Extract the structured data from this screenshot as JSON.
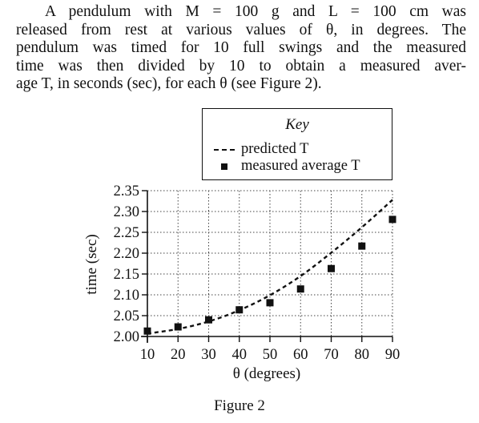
{
  "passage": {
    "lines": [
      "A pendulum with M = 100 g and L = 100 cm was",
      "released from rest at various values of θ, in degrees. The",
      "pendulum was timed for 10 full swings and the measured",
      "time was then divided by 10 to obtain a measured aver-",
      "age T, in seconds (sec), for each θ (see Figure 2)."
    ]
  },
  "key": {
    "title": "Key",
    "predicted_label": "predicted T",
    "measured_label": "measured average T"
  },
  "figure_caption": "Figure 2",
  "chart_data": {
    "type": "scatter",
    "xlabel": "θ (degrees)",
    "ylabel": "time (sec)",
    "xlim": [
      10,
      90
    ],
    "ylim": [
      2.0,
      2.35
    ],
    "x_ticks": [
      "10",
      "20",
      "30",
      "40",
      "50",
      "60",
      "70",
      "80",
      "90"
    ],
    "y_ticks": [
      "2.00",
      "2.05",
      "2.10",
      "2.15",
      "2.20",
      "2.25",
      "2.30",
      "2.35"
    ],
    "grid": true,
    "legend_position": "top",
    "series": [
      {
        "name": "predicted T",
        "style": "dashed-line",
        "x": [
          10,
          20,
          30,
          40,
          50,
          60,
          70,
          80,
          90
        ],
        "values": [
          2.007,
          2.018,
          2.036,
          2.063,
          2.099,
          2.145,
          2.201,
          2.262,
          2.328
        ]
      },
      {
        "name": "measured average T",
        "style": "square-markers",
        "x": [
          10,
          20,
          30,
          40,
          50,
          60,
          70,
          80,
          90
        ],
        "values": [
          2.013,
          2.023,
          2.04,
          2.064,
          2.081,
          2.114,
          2.163,
          2.217,
          2.281
        ]
      }
    ]
  }
}
